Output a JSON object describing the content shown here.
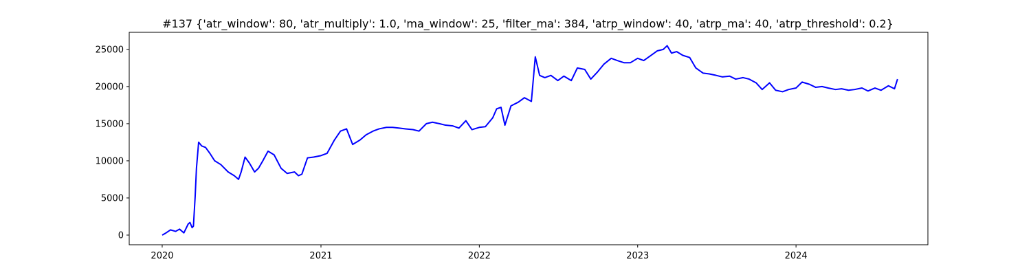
{
  "chart_data": {
    "type": "line",
    "title": "#137 {'atr_window': 80, 'atr_multiply': 1.0, 'ma_window': 25, 'filter_ma': 384, 'atrp_window': 40, 'atrp_ma': 40, 'atrp_threshold': 0.2}",
    "xlabel": "",
    "ylabel": "",
    "xlim": [
      "2019-10-17",
      "2024-10-31"
    ],
    "ylim": [
      -1300,
      27300
    ],
    "x_ticks": [
      "2020",
      "2021",
      "2022",
      "2023",
      "2024"
    ],
    "y_ticks": [
      0,
      5000,
      10000,
      15000,
      20000,
      25000
    ],
    "grid": false,
    "legend": "none",
    "series_color": "#0000ff",
    "series": [
      {
        "x": [
          "2020-01-01",
          "2020-01-10",
          "2020-01-20",
          "2020-02-01",
          "2020-02-10",
          "2020-02-20",
          "2020-03-01",
          "2020-03-05",
          "2020-03-10",
          "2020-03-13",
          "2020-03-17",
          "2020-03-20",
          "2020-03-25",
          "2020-04-01",
          "2020-04-10",
          "2020-04-20",
          "2020-05-01",
          "2020-05-15",
          "2020-06-01",
          "2020-06-15",
          "2020-06-25",
          "2020-07-01",
          "2020-07-10",
          "2020-07-20",
          "2020-08-01",
          "2020-08-10",
          "2020-08-20",
          "2020-09-01",
          "2020-09-15",
          "2020-10-01",
          "2020-10-15",
          "2020-11-01",
          "2020-11-10",
          "2020-11-18",
          "2020-12-01",
          "2020-12-15",
          "2021-01-01",
          "2021-01-15",
          "2021-02-01",
          "2021-02-15",
          "2021-03-01",
          "2021-03-15",
          "2021-04-01",
          "2021-04-15",
          "2021-05-01",
          "2021-05-15",
          "2021-06-01",
          "2021-06-15",
          "2021-07-01",
          "2021-07-15",
          "2021-08-01",
          "2021-08-15",
          "2021-09-01",
          "2021-09-15",
          "2021-10-01",
          "2021-10-15",
          "2021-11-01",
          "2021-11-15",
          "2021-12-01",
          "2021-12-15",
          "2022-01-01",
          "2022-01-15",
          "2022-02-01",
          "2022-02-10",
          "2022-02-20",
          "2022-03-01",
          "2022-03-15",
          "2022-04-01",
          "2022-04-15",
          "2022-05-01",
          "2022-05-10",
          "2022-05-20",
          "2022-06-01",
          "2022-06-15",
          "2022-07-01",
          "2022-07-15",
          "2022-08-01",
          "2022-08-15",
          "2022-09-01",
          "2022-09-15",
          "2022-10-01",
          "2022-10-15",
          "2022-11-01",
          "2022-11-15",
          "2022-12-01",
          "2022-12-15",
          "2023-01-01",
          "2023-01-15",
          "2023-02-01",
          "2023-02-15",
          "2023-03-01",
          "2023-03-10",
          "2023-03-20",
          "2023-04-01",
          "2023-04-15",
          "2023-05-01",
          "2023-05-15",
          "2023-06-01",
          "2023-06-15",
          "2023-07-01",
          "2023-07-15",
          "2023-08-01",
          "2023-08-15",
          "2023-09-01",
          "2023-09-15",
          "2023-10-01",
          "2023-10-15",
          "2023-11-01",
          "2023-11-15",
          "2023-12-01",
          "2023-12-15",
          "2024-01-01",
          "2024-01-15",
          "2024-02-01",
          "2024-02-15",
          "2024-03-01",
          "2024-03-15",
          "2024-04-01",
          "2024-04-15",
          "2024-05-01",
          "2024-05-15",
          "2024-06-01",
          "2024-06-15",
          "2024-07-01",
          "2024-07-15",
          "2024-08-01",
          "2024-08-15",
          "2024-08-22"
        ],
        "values": [
          0,
          300,
          700,
          500,
          800,
          300,
          1500,
          1700,
          1000,
          1200,
          5200,
          9000,
          12500,
          12000,
          11800,
          11000,
          10000,
          9500,
          8500,
          8000,
          7500,
          8500,
          10500,
          9700,
          8500,
          9000,
          10000,
          11300,
          10800,
          9000,
          8300,
          8500,
          8000,
          8200,
          10400,
          10500,
          10700,
          11000,
          12800,
          14000,
          14300,
          12200,
          12800,
          13500,
          14000,
          14300,
          14500,
          14500,
          14400,
          14300,
          14200,
          14000,
          15000,
          15200,
          15000,
          14800,
          14700,
          14400,
          15400,
          14200,
          14500,
          14600,
          15800,
          17000,
          17200,
          14800,
          17400,
          17900,
          18500,
          18000,
          24000,
          21500,
          21200,
          21500,
          20800,
          21400,
          20800,
          22500,
          22300,
          21000,
          22000,
          23000,
          23800,
          23500,
          23200,
          23200,
          23800,
          23500,
          24200,
          24800,
          25000,
          25500,
          24500,
          24700,
          24200,
          23900,
          22500,
          21800,
          21700,
          21500,
          21300,
          21400,
          21000,
          21200,
          21000,
          20500,
          19600,
          20500,
          19500,
          19300,
          19600,
          19800,
          20600,
          20300,
          19900,
          20000,
          19800,
          19600,
          19700,
          19500,
          19600,
          19800,
          19400,
          19800,
          19500,
          20100,
          19700,
          21000
        ]
      }
    ]
  }
}
